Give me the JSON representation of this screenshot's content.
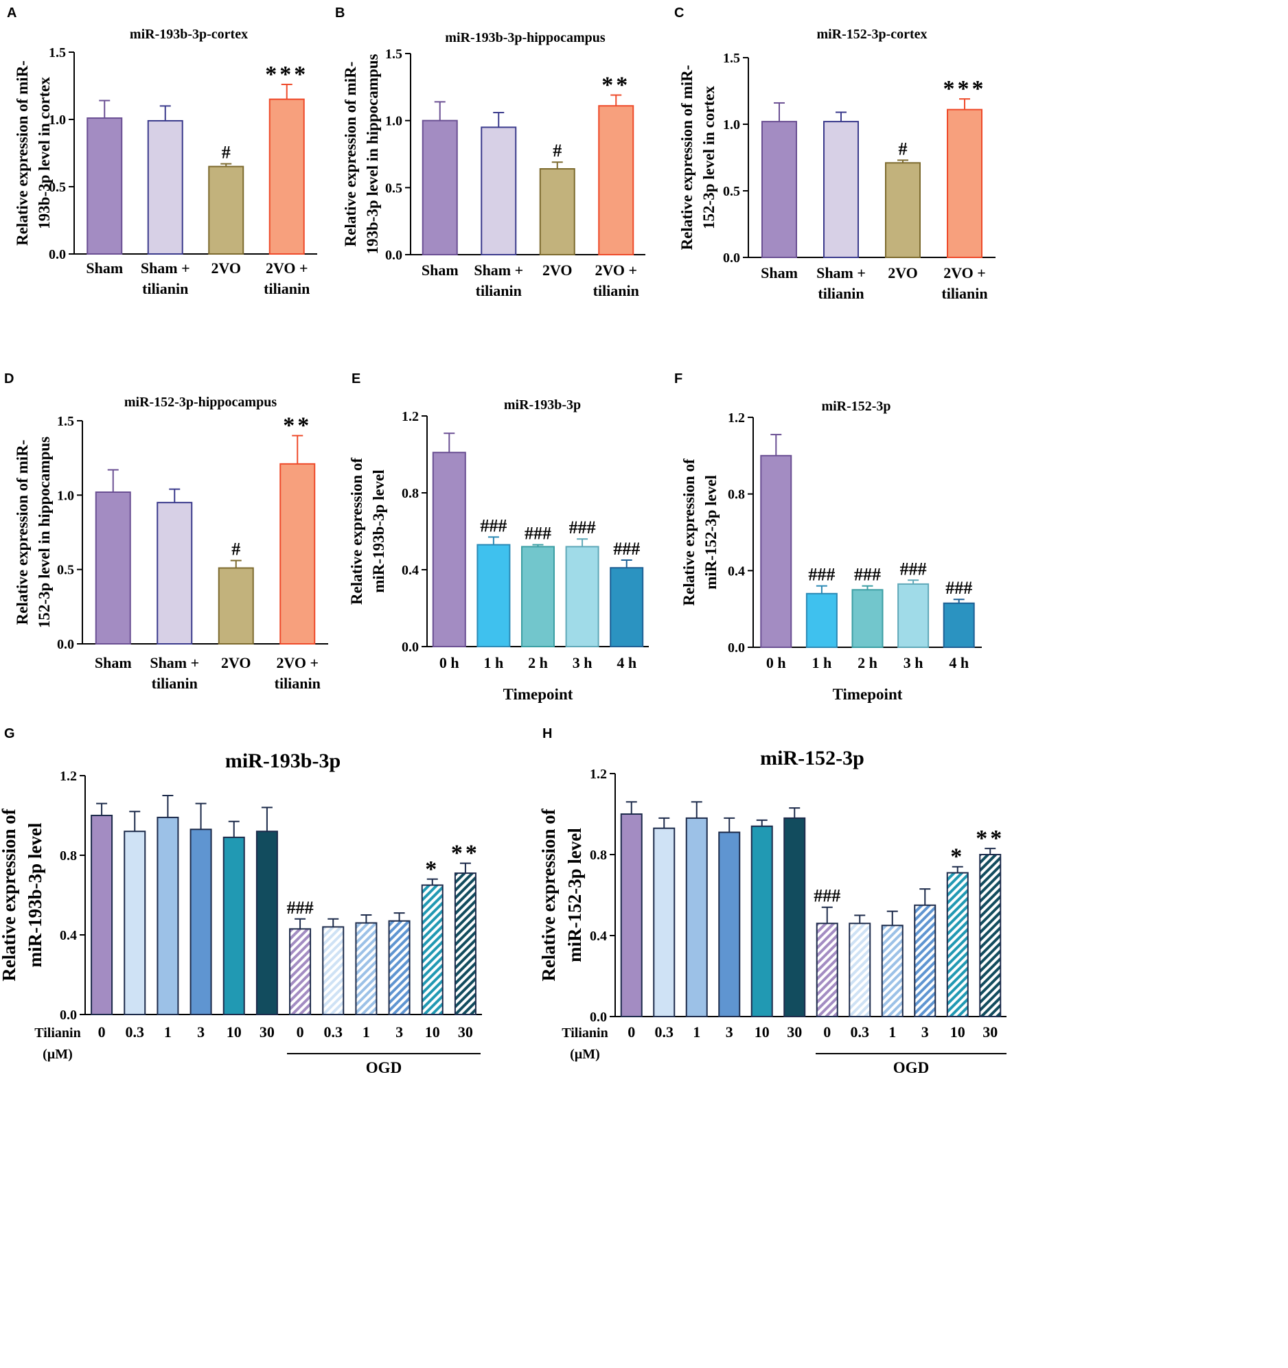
{
  "figure": {
    "panels": [
      "A",
      "B",
      "C",
      "D",
      "E",
      "F",
      "G",
      "H"
    ]
  },
  "chart_data": [
    {
      "panel": "A",
      "type": "bar",
      "title": "miR-193b-3p-cortex",
      "ylabel": "Relative expression of miR-193b-3p level in cortex",
      "ylabel_lines": [
        "Relative expression of miR-",
        "193b-3p level in cortex"
      ],
      "xlabel": "",
      "ylim": [
        0,
        1.5
      ],
      "yticks": [
        0.0,
        0.5,
        1.0,
        1.5
      ],
      "ytick_labels": [
        "0.0",
        "0.5",
        "1.0",
        "1.5"
      ],
      "categories": [
        "Sham",
        "Sham + tilianin",
        "2VO",
        "2VO + tilianin"
      ],
      "category_lines": [
        [
          "Sham"
        ],
        [
          "Sham +",
          "tilianin"
        ],
        [
          "2VO"
        ],
        [
          "2VO +",
          "tilianin"
        ]
      ],
      "values": [
        1.01,
        0.99,
        0.65,
        1.15
      ],
      "errors": [
        0.13,
        0.11,
        0.02,
        0.11
      ],
      "annotations": [
        "",
        "",
        "#",
        "***"
      ],
      "colors": [
        "#a38cc2",
        "#d7d0e6",
        "#c2b27c",
        "#f7a07d"
      ],
      "edge_colors": [
        "#6a4f93",
        "#3a3a8c",
        "#7c6a2e",
        "#ee4a2a"
      ]
    },
    {
      "panel": "B",
      "type": "bar",
      "title": "miR-193b-3p-hippocampus",
      "ylabel": "Relative expression of miR-193b-3p level in hippocampus",
      "ylabel_lines": [
        "Relative expression of miR-",
        "193b-3p level in hippocampus"
      ],
      "xlabel": "",
      "ylim": [
        0,
        1.5
      ],
      "yticks": [
        0.0,
        0.5,
        1.0,
        1.5
      ],
      "ytick_labels": [
        "0.0",
        "0.5",
        "1.0",
        "1.5"
      ],
      "categories": [
        "Sham",
        "Sham + tilianin",
        "2VO",
        "2VO + tilianin"
      ],
      "category_lines": [
        [
          "Sham"
        ],
        [
          "Sham +",
          "tilianin"
        ],
        [
          "2VO"
        ],
        [
          "2VO +",
          "tilianin"
        ]
      ],
      "values": [
        1.0,
        0.95,
        0.64,
        1.11
      ],
      "errors": [
        0.14,
        0.11,
        0.05,
        0.08
      ],
      "annotations": [
        "",
        "",
        "#",
        "**"
      ],
      "colors": [
        "#a38cc2",
        "#d7d0e6",
        "#c2b27c",
        "#f7a07d"
      ],
      "edge_colors": [
        "#6a4f93",
        "#3a3a8c",
        "#7c6a2e",
        "#ee4a2a"
      ]
    },
    {
      "panel": "C",
      "type": "bar",
      "title": "miR-152-3p-cortex",
      "ylabel": "Relative expression of miR-152-3p level in cortex",
      "ylabel_lines": [
        "Relative expression of miR-",
        "152-3p level in cortex"
      ],
      "xlabel": "",
      "ylim": [
        0,
        1.5
      ],
      "yticks": [
        0.0,
        0.5,
        1.0,
        1.5
      ],
      "ytick_labels": [
        "0.0",
        "0.5",
        "1.0",
        "1.5"
      ],
      "categories": [
        "Sham",
        "Sham + tilianin",
        "2VO",
        "2VO + tilianin"
      ],
      "category_lines": [
        [
          "Sham"
        ],
        [
          "Sham +",
          "tilianin"
        ],
        [
          "2VO"
        ],
        [
          "2VO +",
          "tilianin"
        ]
      ],
      "values": [
        1.02,
        1.02,
        0.71,
        1.11
      ],
      "errors": [
        0.14,
        0.07,
        0.02,
        0.08
      ],
      "annotations": [
        "",
        "",
        "#",
        "***"
      ],
      "colors": [
        "#a38cc2",
        "#d7d0e6",
        "#c2b27c",
        "#f7a07d"
      ],
      "edge_colors": [
        "#6a4f93",
        "#3a3a8c",
        "#7c6a2e",
        "#ee4a2a"
      ]
    },
    {
      "panel": "D",
      "type": "bar",
      "title": "miR-152-3p-hippocampus",
      "ylabel": "Relative expression of miR-152-3p level in hippocampus",
      "ylabel_lines": [
        "Relative expression of miR-",
        "152-3p level in hippocampus"
      ],
      "xlabel": "",
      "ylim": [
        0,
        1.5
      ],
      "yticks": [
        0.0,
        0.5,
        1.0,
        1.5
      ],
      "ytick_labels": [
        "0.0",
        "0.5",
        "1.0",
        "1.5"
      ],
      "categories": [
        "Sham",
        "Sham + tilianin",
        "2VO",
        "2VO + tilianin"
      ],
      "category_lines": [
        [
          "Sham"
        ],
        [
          "Sham +",
          "tilianin"
        ],
        [
          "2VO"
        ],
        [
          "2VO +",
          "tilianin"
        ]
      ],
      "values": [
        1.02,
        0.95,
        0.51,
        1.21
      ],
      "errors": [
        0.15,
        0.09,
        0.05,
        0.19
      ],
      "annotations": [
        "",
        "",
        "#",
        "**"
      ],
      "colors": [
        "#a38cc2",
        "#d7d0e6",
        "#c2b27c",
        "#f7a07d"
      ],
      "edge_colors": [
        "#6a4f93",
        "#3a3a8c",
        "#7c6a2e",
        "#ee4a2a"
      ]
    },
    {
      "panel": "E",
      "type": "bar",
      "title": "miR-193b-3p",
      "ylabel": "Relative expression of miR-193b-3p level",
      "ylabel_lines": [
        "Relative expression of",
        "miR-193b-3p level"
      ],
      "xlabel": "Timepoint",
      "ylim": [
        0,
        1.2
      ],
      "yticks": [
        0.0,
        0.4,
        0.8,
        1.2
      ],
      "ytick_labels": [
        "0.0",
        "0.4",
        "0.8",
        "1.2"
      ],
      "categories": [
        "0 h",
        "1 h",
        "2 h",
        "3 h",
        "4 h"
      ],
      "category_lines": [
        [
          "0 h"
        ],
        [
          "1 h"
        ],
        [
          "2 h"
        ],
        [
          "3 h"
        ],
        [
          "4 h"
        ]
      ],
      "values": [
        1.01,
        0.53,
        0.52,
        0.52,
        0.41
      ],
      "errors": [
        0.1,
        0.04,
        0.01,
        0.04,
        0.04
      ],
      "annotations": [
        "",
        "###",
        "###",
        "###",
        "###"
      ],
      "colors": [
        "#a38cc2",
        "#3fc1ee",
        "#72c6cc",
        "#a0dbe8",
        "#2b93c1"
      ],
      "edge_colors": [
        "#6a4f93",
        "#2a89b5",
        "#3b9ea3",
        "#5fa8b8",
        "#1d5f94"
      ]
    },
    {
      "panel": "F",
      "type": "bar",
      "title": "miR-152-3p",
      "ylabel": "Relative expression of miR-152-3p level",
      "ylabel_lines": [
        "Relative expression of",
        "miR-152-3p level"
      ],
      "xlabel": "Timepoint",
      "ylim": [
        0,
        1.2
      ],
      "yticks": [
        0.0,
        0.4,
        0.8,
        1.2
      ],
      "ytick_labels": [
        "0.0",
        "0.4",
        "0.8",
        "1.2"
      ],
      "categories": [
        "0 h",
        "1 h",
        "2 h",
        "3 h",
        "4 h"
      ],
      "category_lines": [
        [
          "0 h"
        ],
        [
          "1 h"
        ],
        [
          "2 h"
        ],
        [
          "3 h"
        ],
        [
          "4 h"
        ]
      ],
      "values": [
        1.0,
        0.28,
        0.3,
        0.33,
        0.23
      ],
      "errors": [
        0.11,
        0.04,
        0.02,
        0.02,
        0.02
      ],
      "annotations": [
        "",
        "###",
        "###",
        "###",
        "###"
      ],
      "colors": [
        "#a38cc2",
        "#3fc1ee",
        "#72c6cc",
        "#a0dbe8",
        "#2b93c1"
      ],
      "edge_colors": [
        "#6a4f93",
        "#2a89b5",
        "#3b9ea3",
        "#5fa8b8",
        "#1d5f94"
      ]
    },
    {
      "panel": "G",
      "type": "bar",
      "title": "miR-193b-3p",
      "ylabel": "Relative expression of miR-193b-3p level",
      "ylabel_lines": [
        "Relative expression of",
        "miR-193b-3p level"
      ],
      "xlabel": "Tilianin (µM)",
      "xlabel_lines": [
        "Tilianin",
        "(µM)"
      ],
      "group_label": "OGD",
      "ylim": [
        0,
        1.2
      ],
      "yticks": [
        0.0,
        0.4,
        0.8,
        1.2
      ],
      "ytick_labels": [
        "0.0",
        "0.4",
        "0.8",
        "1.2"
      ],
      "categories": [
        "0",
        "0.3",
        "1",
        "3",
        "10",
        "30",
        "0",
        "0.3",
        "1",
        "3",
        "10",
        "30"
      ],
      "category_lines": [
        [
          "0"
        ],
        [
          "0.3"
        ],
        [
          "1"
        ],
        [
          "3"
        ],
        [
          "10"
        ],
        [
          "30"
        ],
        [
          "0"
        ],
        [
          "0.3"
        ],
        [
          "1"
        ],
        [
          "3"
        ],
        [
          "10"
        ],
        [
          "30"
        ]
      ],
      "values": [
        1.0,
        0.92,
        0.99,
        0.93,
        0.89,
        0.92,
        0.43,
        0.44,
        0.46,
        0.47,
        0.65,
        0.71
      ],
      "errors": [
        0.06,
        0.1,
        0.11,
        0.13,
        0.08,
        0.12,
        0.05,
        0.04,
        0.04,
        0.04,
        0.03,
        0.05
      ],
      "annotations": [
        "",
        "",
        "",
        "",
        "",
        "",
        "###",
        "",
        "",
        "",
        "*",
        "**"
      ],
      "colors": [
        "#a38cc2",
        "#cfe2f5",
        "#9cc1e7",
        "#5f95d1",
        "#2199b3",
        "#124c5e",
        "#a38cc2",
        "#cfe2f5",
        "#9cc1e7",
        "#5f95d1",
        "#2199b3",
        "#124c5e"
      ],
      "hatched": [
        false,
        false,
        false,
        false,
        false,
        false,
        true,
        true,
        true,
        true,
        true,
        true
      ]
    },
    {
      "panel": "H",
      "type": "bar",
      "title": "miR-152-3p",
      "ylabel": "Relative expression of miR-152-3p level",
      "ylabel_lines": [
        "Relative expression of",
        "miR-152-3p level"
      ],
      "xlabel": "Tilianin (µM)",
      "xlabel_lines": [
        "Tilianin",
        "(µM)"
      ],
      "group_label": "OGD",
      "ylim": [
        0,
        1.2
      ],
      "yticks": [
        0.0,
        0.4,
        0.8,
        1.2
      ],
      "ytick_labels": [
        "0.0",
        "0.4",
        "0.8",
        "1.2"
      ],
      "categories": [
        "0",
        "0.3",
        "1",
        "3",
        "10",
        "30",
        "0",
        "0.3",
        "1",
        "3",
        "10",
        "30"
      ],
      "category_lines": [
        [
          "0"
        ],
        [
          "0.3"
        ],
        [
          "1"
        ],
        [
          "3"
        ],
        [
          "10"
        ],
        [
          "30"
        ],
        [
          "0"
        ],
        [
          "0.3"
        ],
        [
          "1"
        ],
        [
          "3"
        ],
        [
          "10"
        ],
        [
          "30"
        ]
      ],
      "values": [
        1.0,
        0.93,
        0.98,
        0.91,
        0.94,
        0.98,
        0.46,
        0.46,
        0.45,
        0.55,
        0.71,
        0.8
      ],
      "errors": [
        0.06,
        0.05,
        0.08,
        0.07,
        0.03,
        0.05,
        0.08,
        0.04,
        0.07,
        0.08,
        0.03,
        0.03
      ],
      "annotations": [
        "",
        "",
        "",
        "",
        "",
        "",
        "###",
        "",
        "",
        "",
        "*",
        "**"
      ],
      "colors": [
        "#a38cc2",
        "#cfe2f5",
        "#9cc1e7",
        "#5f95d1",
        "#2199b3",
        "#124c5e",
        "#a38cc2",
        "#cfe2f5",
        "#9cc1e7",
        "#5f95d1",
        "#2199b3",
        "#124c5e"
      ],
      "hatched": [
        false,
        false,
        false,
        false,
        false,
        false,
        true,
        true,
        true,
        true,
        true,
        true
      ]
    }
  ]
}
